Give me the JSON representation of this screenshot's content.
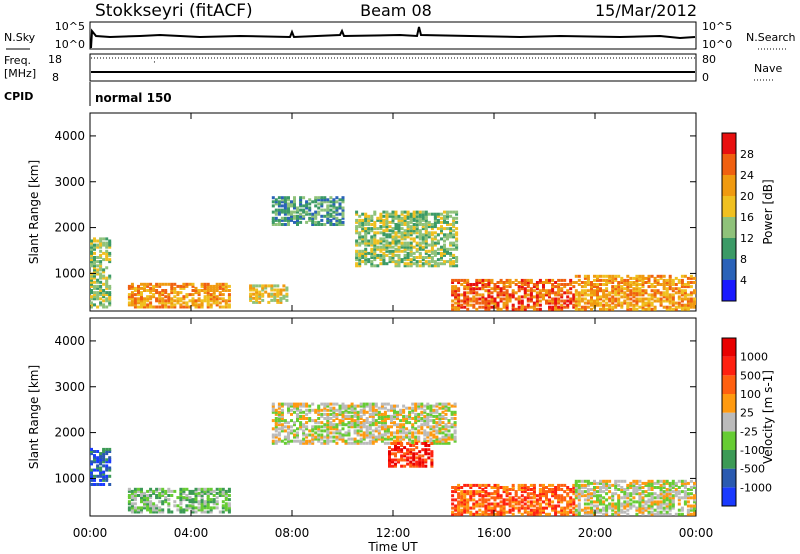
{
  "header": {
    "station": "Stokkseyri (fitACF)",
    "beam": "Beam 08",
    "date": "15/Mar/2012"
  },
  "top_panels": {
    "nsky_label": "N.Sky",
    "nsky_ticks": [
      "10^5",
      "10^0"
    ],
    "nsearch_label": "N.Search",
    "nsearch_ticks": [
      "10^5",
      "10^0"
    ],
    "freq_label_1": "Freq.",
    "freq_label_2": "[MHz]",
    "freq_ticks": [
      "18",
      "8"
    ],
    "nave_label": "Nave",
    "nave_ticks": [
      "80",
      "0"
    ],
    "cpid_label": "CPID",
    "cpid_value": "normal 150"
  },
  "chart_data": [
    {
      "type": "heatmap",
      "name": "power",
      "xlabel": "Time UT",
      "ylabel": "Slant Range [km]",
      "x_ticks": [
        "00:00",
        "04:00",
        "08:00",
        "12:00",
        "16:00",
        "20:00",
        "00:00"
      ],
      "x_range_hours": [
        0,
        24
      ],
      "y_ticks": [
        "1000",
        "2000",
        "3000",
        "4000"
      ],
      "ylim": [
        180,
        4500
      ],
      "colorbar_label": "Power [dB]",
      "colorbar_ticks": [
        "4",
        "8",
        "12",
        "16",
        "20",
        "24",
        "28"
      ],
      "colorbar_colors": [
        "#1a1aff",
        "#2a62b8",
        "#3b9a66",
        "#8fc27a",
        "#f0c020",
        "#f09a10",
        "#f06010",
        "#e81010"
      ],
      "regions": [
        {
          "t0": 0.0,
          "t1": 0.8,
          "r0": 300,
          "r1": 1800,
          "level": 3
        },
        {
          "t0": 1.5,
          "t1": 5.5,
          "r0": 300,
          "r1": 800,
          "level": 5
        },
        {
          "t0": 6.3,
          "t1": 7.8,
          "r0": 400,
          "r1": 800,
          "level": 4
        },
        {
          "t0": 7.2,
          "t1": 10.0,
          "r0": 2100,
          "r1": 2700,
          "level": 2
        },
        {
          "t0": 10.5,
          "t1": 14.5,
          "r0": 1200,
          "r1": 2400,
          "level": 3
        },
        {
          "t0": 14.3,
          "t1": 19.2,
          "r0": 250,
          "r1": 900,
          "level": 6
        },
        {
          "t0": 19.2,
          "t1": 24.0,
          "r0": 250,
          "r1": 1000,
          "level": 5
        }
      ]
    },
    {
      "type": "heatmap",
      "name": "velocity",
      "xlabel": "Time UT",
      "ylabel": "Slant Range [km]",
      "x_ticks": [
        "00:00",
        "04:00",
        "08:00",
        "12:00",
        "16:00",
        "20:00",
        "00:00"
      ],
      "x_range_hours": [
        0,
        24
      ],
      "y_ticks": [
        "1000",
        "2000",
        "3000",
        "4000"
      ],
      "ylim": [
        180,
        4500
      ],
      "colorbar_label": "Velocity [m s-1]",
      "colorbar_ticks": [
        "1000",
        "500",
        "100",
        "25",
        "-25",
        "-100",
        "-500",
        "-1000"
      ],
      "colorbar_colors": [
        "#1a3aff",
        "#2a5ab0",
        "#3c9a55",
        "#66cc33",
        "#bbbbbb",
        "#ff9a10",
        "#ff6010",
        "#ff2010",
        "#e80000"
      ],
      "regions": [
        {
          "t0": 0.0,
          "t1": 0.8,
          "r0": 900,
          "r1": 1700,
          "level": 1
        },
        {
          "t0": 1.5,
          "t1": 5.5,
          "r0": 300,
          "r1": 800,
          "level": 3
        },
        {
          "t0": 7.2,
          "t1": 14.5,
          "r0": 1800,
          "r1": 2700,
          "level": 4
        },
        {
          "t0": 11.8,
          "t1": 13.5,
          "r0": 1300,
          "r1": 1800,
          "level": 7
        },
        {
          "t0": 14.3,
          "t1": 19.2,
          "r0": 250,
          "r1": 900,
          "level": 6
        },
        {
          "t0": 19.2,
          "t1": 24.0,
          "r0": 250,
          "r1": 1000,
          "level": 4
        }
      ]
    }
  ]
}
